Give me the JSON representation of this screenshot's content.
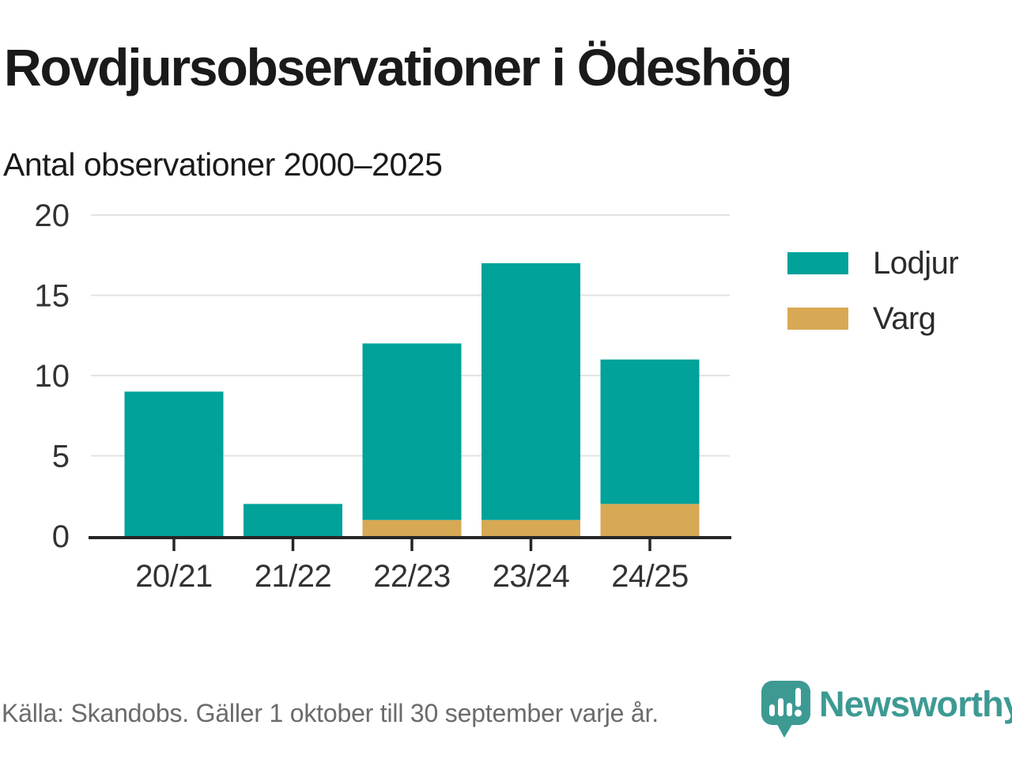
{
  "header": {
    "title": "Rovdjursobservationer i Ödeshög",
    "subtitle": "Antal observationer 2000–2025"
  },
  "chart_data": {
    "type": "bar",
    "stacked": true,
    "title": "Rovdjursobservationer i Ödeshög",
    "subtitle": "Antal observationer 2000–2025",
    "categories": [
      "20/21",
      "21/22",
      "22/23",
      "23/24",
      "24/25"
    ],
    "series": [
      {
        "name": "Lodjur",
        "color": "#00A29A",
        "values": [
          9,
          2,
          11,
          16,
          9
        ]
      },
      {
        "name": "Varg",
        "color": "#D8A955",
        "values": [
          0,
          0,
          1,
          1,
          2
        ]
      }
    ],
    "stack_totals": [
      9,
      2,
      12,
      17,
      11
    ],
    "stack_order_bottom_to_top": [
      "Varg",
      "Lodjur"
    ],
    "xlabel": "",
    "ylabel": "",
    "ylim": [
      0,
      20
    ],
    "yticks": [
      0,
      5,
      10,
      15,
      20
    ],
    "grid": true,
    "legend_position": "right"
  },
  "footer": {
    "source": "Källa: Skandobs. Gäller 1 oktober till 30 september varje år.",
    "brand": "Newsworthy"
  },
  "colors": {
    "background": "#FFFFFF",
    "grid": "#E3E3E3",
    "axis": "#262626",
    "tick_label": "#333333",
    "heading_text": "#1A1A1A",
    "legend_text": "#2B2B2B",
    "source_text": "#6B6B6B",
    "brand_teal": "#3D9A93"
  }
}
